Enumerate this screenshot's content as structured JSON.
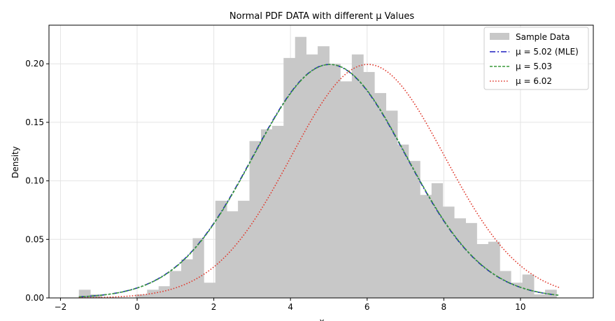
{
  "chart_data": {
    "type": "bar",
    "title": "Normal PDF DATA with different μ Values",
    "xlabel": "x",
    "ylabel": "Density",
    "xlim": [
      -2.3,
      11.9
    ],
    "ylim": [
      0,
      0.233
    ],
    "xticks": [
      -2,
      0,
      2,
      4,
      6,
      8,
      10
    ],
    "xtick_labels": [
      "−2",
      "0",
      "2",
      "4",
      "6",
      "8",
      "10"
    ],
    "yticks": [
      0.0,
      0.05,
      0.1,
      0.15,
      0.2
    ],
    "ytick_labels": [
      "0.00",
      "0.05",
      "0.10",
      "0.15",
      "0.20"
    ],
    "grid": true,
    "legend_position": "upper right",
    "histogram": {
      "name": "Sample Data",
      "color": "#c8c8c8",
      "bin_edges": [
        -1.52,
        -1.22,
        -0.93,
        -0.63,
        -0.33,
        -0.04,
        0.26,
        0.56,
        0.85,
        1.15,
        1.45,
        1.74,
        2.04,
        2.34,
        2.63,
        2.93,
        3.23,
        3.52,
        3.82,
        4.12,
        4.41,
        4.71,
        5.01,
        5.3,
        5.6,
        5.9,
        6.19,
        6.49,
        6.79,
        7.08,
        7.38,
        7.68,
        7.97,
        8.27,
        8.57,
        8.86,
        9.16,
        9.46,
        9.75,
        10.05,
        10.35,
        10.64,
        10.94
      ],
      "densities": [
        0.007,
        0.003,
        0.0,
        0.0,
        0.0,
        0.003,
        0.007,
        0.01,
        0.023,
        0.033,
        0.051,
        0.013,
        0.083,
        0.074,
        0.083,
        0.134,
        0.144,
        0.147,
        0.205,
        0.223,
        0.208,
        0.215,
        0.2,
        0.185,
        0.208,
        0.193,
        0.175,
        0.16,
        0.131,
        0.117,
        0.088,
        0.098,
        0.078,
        0.068,
        0.064,
        0.046,
        0.048,
        0.023,
        0.013,
        0.02,
        0.003,
        0.007
      ]
    },
    "series": [
      {
        "name": "μ = 5.02 (MLE)",
        "mu": 5.02,
        "sigma": 2.0,
        "x_range": [
          -1.52,
          11.02
        ],
        "color": "#1f1fbf",
        "style": "dashdot"
      },
      {
        "name": "μ = 5.03",
        "mu": 5.03,
        "sigma": 2.0,
        "x_range": [
          -1.52,
          11.02
        ],
        "color": "#3a9a3a",
        "style": "dashed"
      },
      {
        "name": "μ = 6.02",
        "mu": 6.02,
        "sigma": 2.0,
        "x_range": [
          -1.52,
          11.02
        ],
        "color": "#e03a2e",
        "style": "dotted"
      }
    ]
  }
}
